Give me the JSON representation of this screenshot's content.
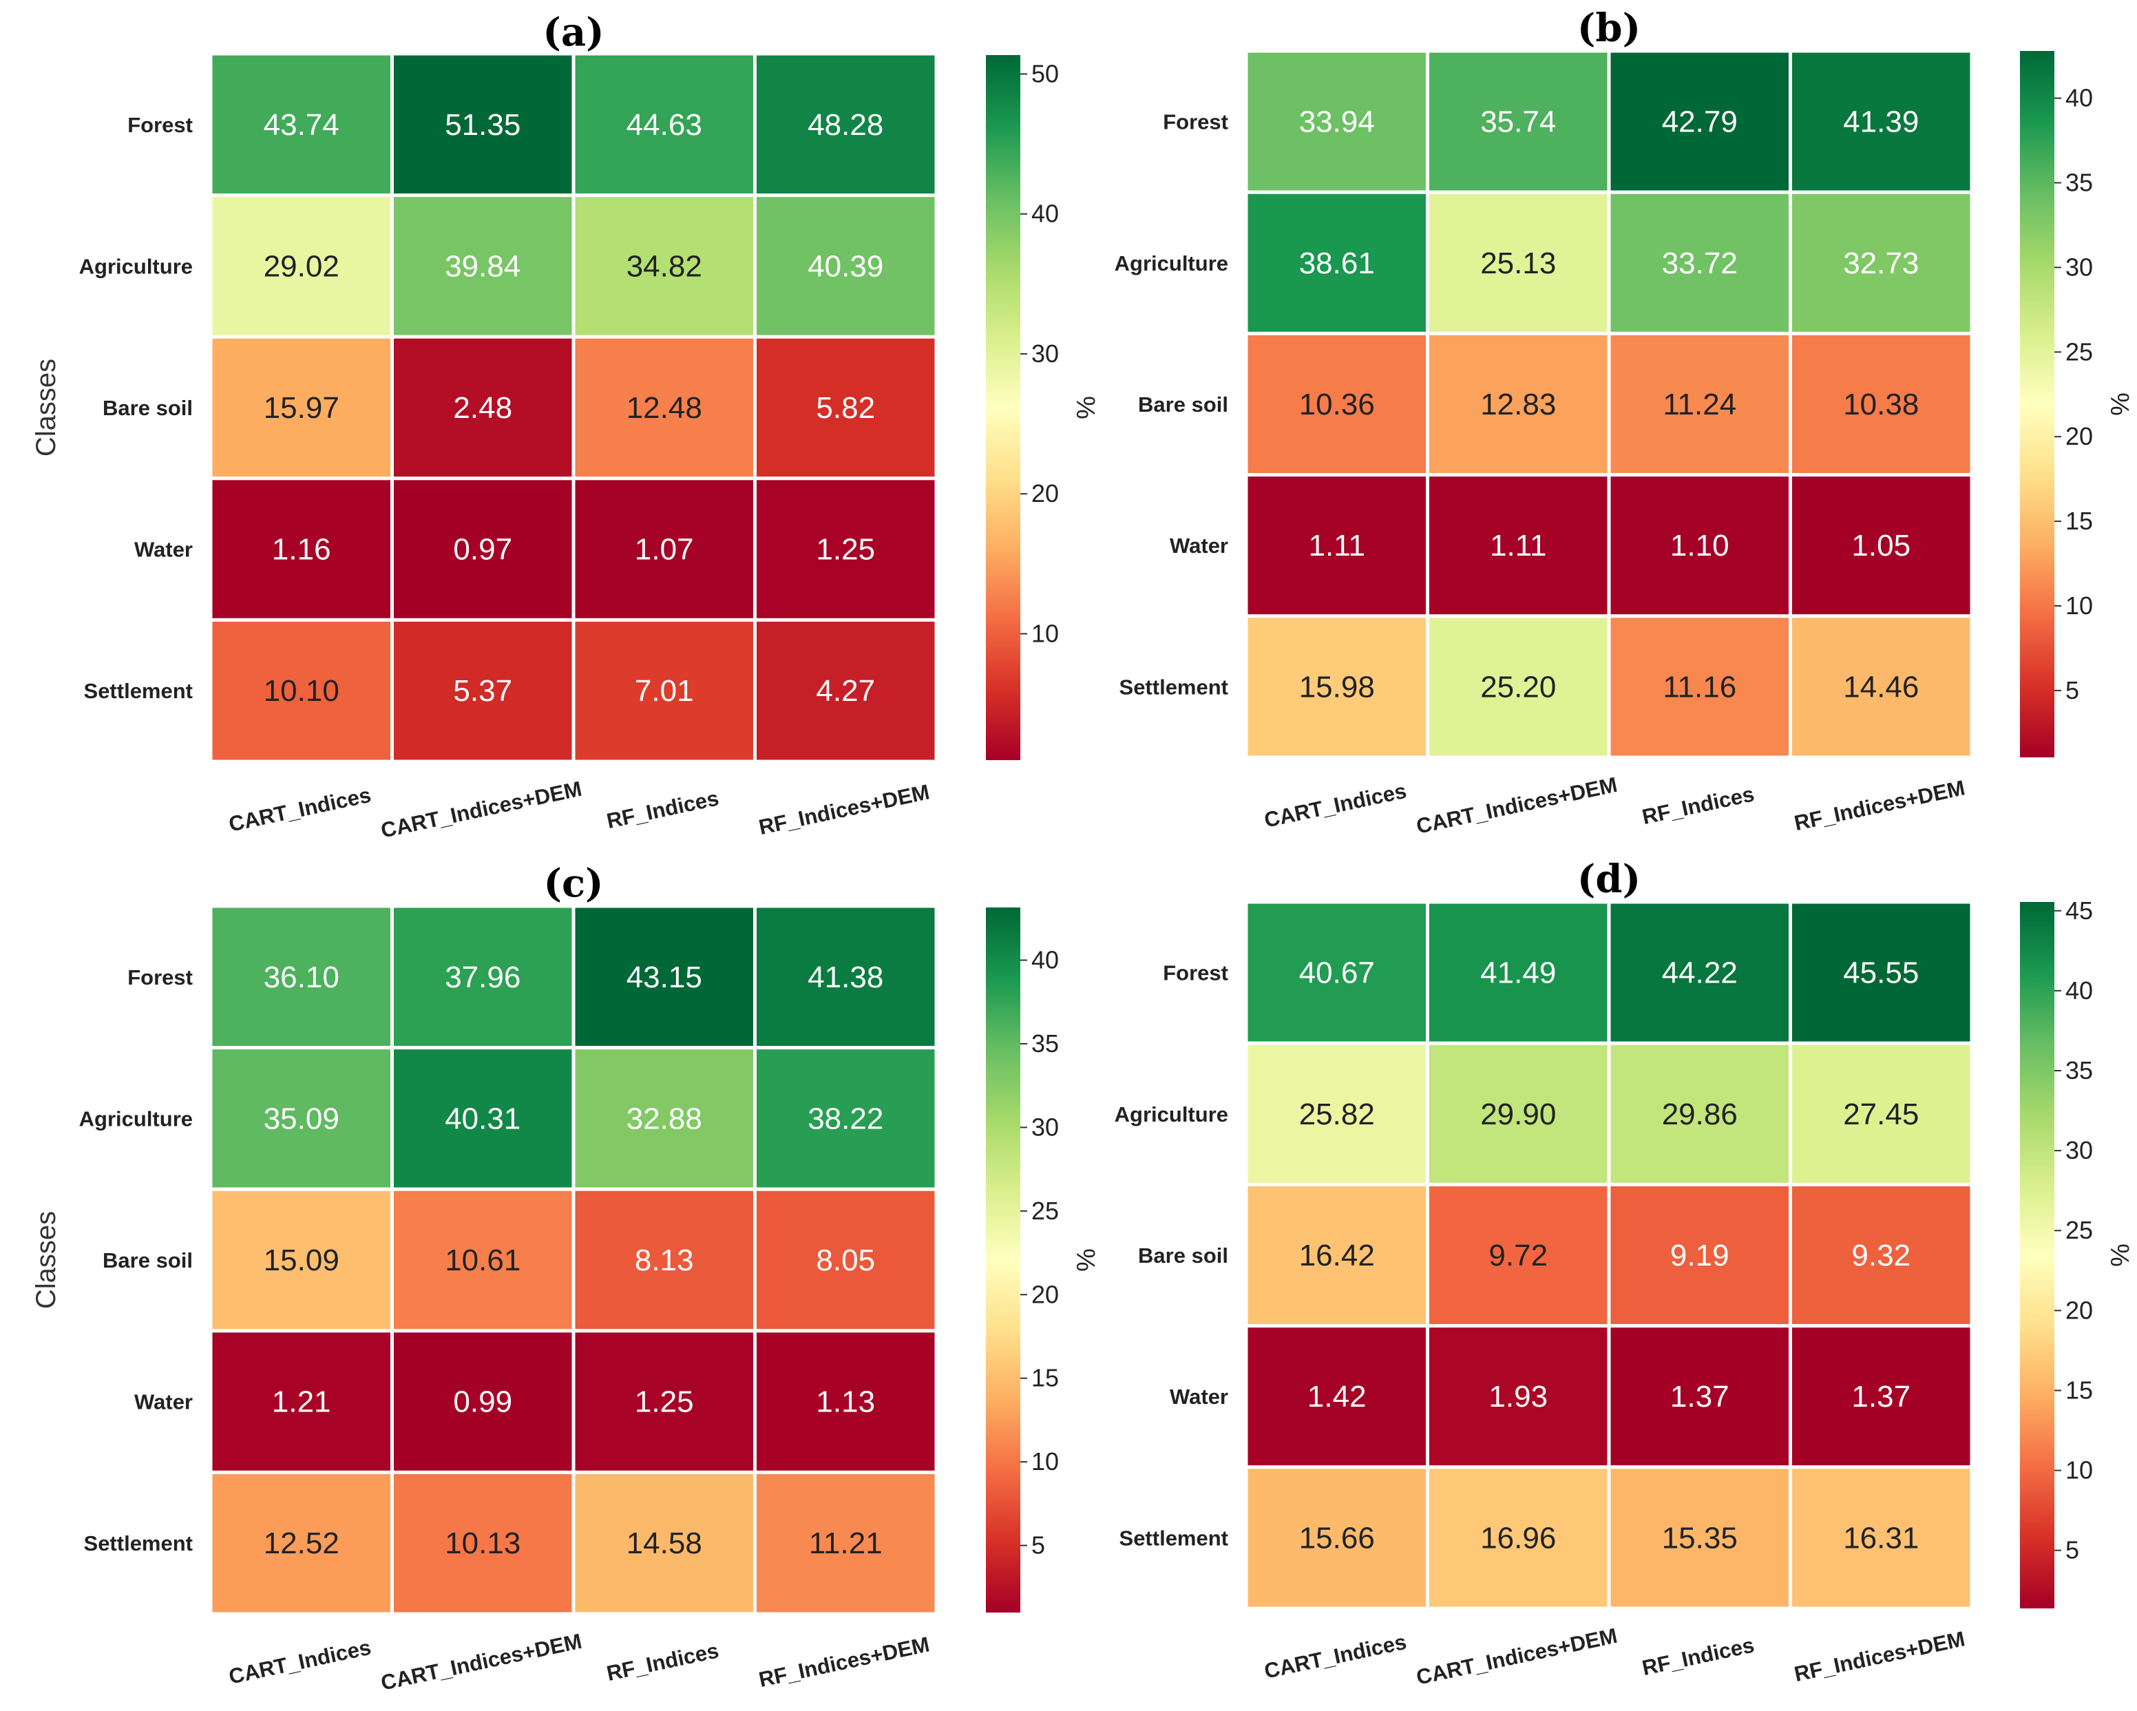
{
  "chart_data": [
    {
      "type": "heatmap",
      "title": "(a)",
      "ylabel": "Classes",
      "colorbar_label": "%",
      "colorbar_ticks": [
        10,
        20,
        30,
        40,
        50
      ],
      "range": [
        0.97,
        51.35
      ],
      "rows": [
        "Forest",
        "Agriculture",
        "Bare soil",
        "Water",
        "Settlement"
      ],
      "columns": [
        "CART_Indices",
        "CART_Indices+DEM",
        "RF_Indices",
        "RF_Indices+DEM"
      ],
      "values": [
        [
          "43.74",
          "51.35",
          "44.63",
          "48.28"
        ],
        [
          "29.02",
          "39.84",
          "34.82",
          "40.39"
        ],
        [
          "15.97",
          "2.48",
          "12.48",
          "5.82"
        ],
        [
          "1.16",
          "0.97",
          "1.07",
          "1.25"
        ],
        [
          "10.10",
          "5.37",
          "7.01",
          "4.27"
        ]
      ]
    },
    {
      "type": "heatmap",
      "title": "(b)",
      "ylabel": "",
      "colorbar_label": "%",
      "colorbar_ticks": [
        5,
        10,
        15,
        20,
        25,
        30,
        35,
        40
      ],
      "range": [
        1.05,
        42.79
      ],
      "rows": [
        "Forest",
        "Agriculture",
        "Bare soil",
        "Water",
        "Settlement"
      ],
      "columns": [
        "CART_Indices",
        "CART_Indices+DEM",
        "RF_Indices",
        "RF_Indices+DEM"
      ],
      "values": [
        [
          "33.94",
          "35.74",
          "42.79",
          "41.39"
        ],
        [
          "38.61",
          "25.13",
          "33.72",
          "32.73"
        ],
        [
          "10.36",
          "12.83",
          "11.24",
          "10.38"
        ],
        [
          "1.11",
          "1.11",
          "1.10",
          "1.05"
        ],
        [
          "15.98",
          "25.20",
          "11.16",
          "14.46"
        ]
      ]
    },
    {
      "type": "heatmap",
      "title": "(c)",
      "ylabel": "Classes",
      "colorbar_label": "%",
      "colorbar_ticks": [
        5,
        10,
        15,
        20,
        25,
        30,
        35,
        40
      ],
      "range": [
        0.99,
        43.15
      ],
      "rows": [
        "Forest",
        "Agriculture",
        "Bare soil",
        "Water",
        "Settlement"
      ],
      "columns": [
        "CART_Indices",
        "CART_Indices+DEM",
        "RF_Indices",
        "RF_Indices+DEM"
      ],
      "values": [
        [
          "36.10",
          "37.96",
          "43.15",
          "41.38"
        ],
        [
          "35.09",
          "40.31",
          "32.88",
          "38.22"
        ],
        [
          "15.09",
          "10.61",
          "8.13",
          "8.05"
        ],
        [
          "1.21",
          "0.99",
          "1.25",
          "1.13"
        ],
        [
          "12.52",
          "10.13",
          "14.58",
          "11.21"
        ]
      ]
    },
    {
      "type": "heatmap",
      "title": "(d)",
      "ylabel": "",
      "colorbar_label": "%",
      "colorbar_ticks": [
        5,
        10,
        15,
        20,
        25,
        30,
        35,
        40,
        45
      ],
      "range": [
        1.37,
        45.55
      ],
      "rows": [
        "Forest",
        "Agriculture",
        "Bare soil",
        "Water",
        "Settlement"
      ],
      "columns": [
        "CART_Indices",
        "CART_Indices+DEM",
        "RF_Indices",
        "RF_Indices+DEM"
      ],
      "values": [
        [
          "40.67",
          "41.49",
          "44.22",
          "45.55"
        ],
        [
          "25.82",
          "29.90",
          "29.86",
          "27.45"
        ],
        [
          "16.42",
          "9.72",
          "9.19",
          "9.32"
        ],
        [
          "1.42",
          "1.93",
          "1.37",
          "1.37"
        ],
        [
          "15.66",
          "16.96",
          "15.35",
          "16.31"
        ]
      ]
    }
  ],
  "colormap": [
    "#a50026",
    "#d73027",
    "#f46d43",
    "#fdae61",
    "#fee08b",
    "#ffffbf",
    "#d9ef8b",
    "#a6d96a",
    "#66bd63",
    "#1a9850",
    "#006837"
  ]
}
